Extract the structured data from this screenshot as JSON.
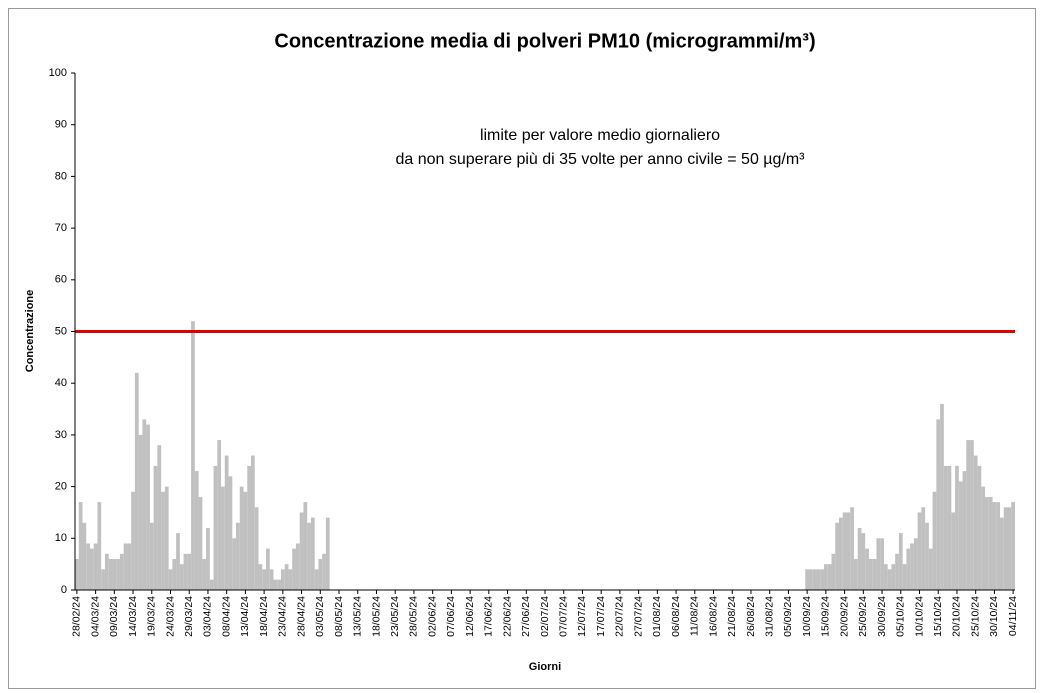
{
  "chart_data": {
    "type": "bar",
    "title": "Concentrazione media di polveri PM10 (microgrammi/m³)",
    "x_label": "Giorni",
    "y_label": "Concentrazione",
    "annotation": [
      "limite per valore medio giornaliero",
      "da non superare più di 35 volte per anno civile = 50 µg/m³"
    ],
    "threshold": 50,
    "threshold_color": "#e00000",
    "color": "#c0c0c0",
    "ylim": [
      0,
      100
    ],
    "yticks": [
      0,
      10,
      20,
      30,
      40,
      50,
      60,
      70,
      80,
      90,
      100
    ],
    "categories": [
      "28/02/24",
      null,
      null,
      null,
      null,
      "04/03/24",
      null,
      null,
      null,
      null,
      "09/03/24",
      null,
      null,
      null,
      null,
      "14/03/24",
      null,
      null,
      null,
      null,
      "19/03/24",
      null,
      null,
      null,
      null,
      "24/03/24",
      null,
      null,
      null,
      null,
      "29/03/24",
      null,
      null,
      null,
      null,
      "03/04/24",
      null,
      null,
      null,
      null,
      "08/04/24",
      null,
      null,
      null,
      null,
      "13/04/24",
      null,
      null,
      null,
      null,
      "18/04/24",
      null,
      null,
      null,
      null,
      "23/04/24",
      null,
      null,
      null,
      null,
      "28/04/24",
      null,
      null,
      null,
      null,
      "03/05/24",
      null,
      null,
      null,
      null,
      "08/05/24",
      null,
      null,
      null,
      null,
      "13/05/24",
      null,
      null,
      null,
      null,
      "18/05/24",
      null,
      null,
      null,
      null,
      "23/05/24",
      null,
      null,
      null,
      null,
      "28/05/24",
      null,
      null,
      null,
      null,
      "02/06/24",
      null,
      null,
      null,
      null,
      "07/06/24",
      null,
      null,
      null,
      null,
      "12/06/24",
      null,
      null,
      null,
      null,
      "17/06/24",
      null,
      null,
      null,
      null,
      "22/06/24",
      null,
      null,
      null,
      null,
      "27/06/24",
      null,
      null,
      null,
      null,
      "02/07/24",
      null,
      null,
      null,
      null,
      "07/07/24",
      null,
      null,
      null,
      null,
      "12/07/24",
      null,
      null,
      null,
      null,
      "17/07/24",
      null,
      null,
      null,
      null,
      "22/07/24",
      null,
      null,
      null,
      null,
      "27/07/24",
      null,
      null,
      null,
      null,
      "01/08/24",
      null,
      null,
      null,
      null,
      "06/08/24",
      null,
      null,
      null,
      null,
      "11/08/24",
      null,
      null,
      null,
      null,
      "16/08/24",
      null,
      null,
      null,
      null,
      "21/08/24",
      null,
      null,
      null,
      null,
      "26/08/24",
      null,
      null,
      null,
      null,
      "31/08/24",
      null,
      null,
      null,
      null,
      "05/09/24",
      null,
      null,
      null,
      null,
      "10/09/24",
      null,
      null,
      null,
      null,
      "15/09/24",
      null,
      null,
      null,
      null,
      "20/09/24",
      null,
      null,
      null,
      null,
      "25/09/24",
      null,
      null,
      null,
      null,
      "30/09/24",
      null,
      null,
      null,
      null,
      "05/10/24",
      null,
      null,
      null,
      null,
      "10/10/24",
      null,
      null,
      null,
      null,
      "15/10/24",
      null,
      null,
      null,
      null,
      "20/10/24",
      null,
      null,
      null,
      null,
      "25/10/24",
      null,
      null,
      null,
      null,
      "30/10/24",
      null,
      null,
      null,
      null,
      "04/11/24"
    ],
    "values": [
      6,
      17,
      13,
      9,
      8,
      9,
      17,
      4,
      7,
      6,
      6,
      6,
      7,
      9,
      9,
      19,
      42,
      30,
      33,
      32,
      13,
      24,
      28,
      19,
      20,
      4,
      6,
      11,
      5,
      7,
      7,
      52,
      23,
      18,
      6,
      12,
      2,
      24,
      29,
      20,
      26,
      22,
      10,
      13,
      20,
      19,
      24,
      26,
      16,
      5,
      4,
      8,
      4,
      2,
      2,
      4,
      5,
      4,
      8,
      9,
      15,
      17,
      13,
      14,
      4,
      6,
      7,
      14,
      null,
      null,
      null,
      null,
      null,
      null,
      null,
      null,
      null,
      null,
      null,
      null,
      null,
      null,
      null,
      null,
      null,
      null,
      null,
      null,
      null,
      null,
      null,
      null,
      null,
      null,
      null,
      null,
      null,
      null,
      null,
      null,
      null,
      null,
      null,
      null,
      null,
      null,
      null,
      null,
      null,
      null,
      null,
      null,
      null,
      null,
      null,
      null,
      null,
      null,
      null,
      null,
      null,
      null,
      null,
      null,
      null,
      null,
      null,
      null,
      null,
      null,
      null,
      null,
      null,
      null,
      null,
      null,
      null,
      null,
      null,
      null,
      null,
      null,
      null,
      null,
      null,
      null,
      null,
      null,
      null,
      null,
      null,
      null,
      null,
      null,
      null,
      null,
      null,
      null,
      null,
      null,
      null,
      null,
      null,
      null,
      null,
      null,
      null,
      null,
      null,
      null,
      null,
      null,
      null,
      null,
      null,
      null,
      null,
      null,
      null,
      null,
      null,
      null,
      null,
      null,
      null,
      null,
      null,
      null,
      null,
      null,
      null,
      null,
      null,
      null,
      null,
      4,
      4,
      4,
      4,
      4,
      5,
      5,
      7,
      13,
      14,
      15,
      15,
      16,
      6,
      12,
      11,
      8,
      6,
      6,
      10,
      10,
      5,
      4,
      5,
      7,
      11,
      5,
      8,
      9,
      10,
      15,
      16,
      13,
      8,
      19,
      33,
      36,
      24,
      24,
      15,
      24,
      21,
      23,
      29,
      29,
      26,
      24,
      20,
      18,
      18,
      17,
      17,
      14,
      16,
      16,
      17
    ]
  }
}
